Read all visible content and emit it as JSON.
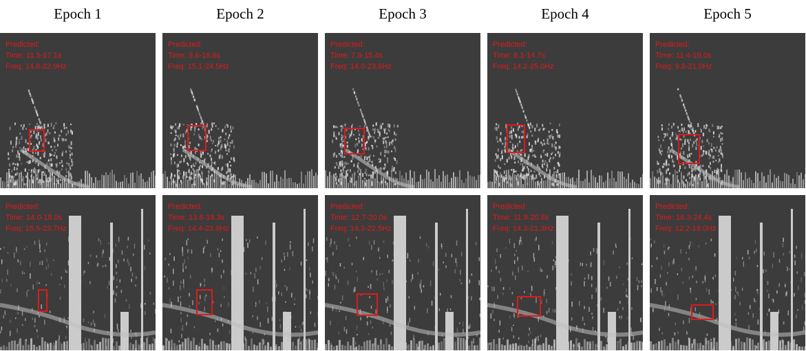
{
  "epochs": [
    {
      "title": "Epoch 1",
      "top": {
        "time": "Time: 11.5-17.1s",
        "freq": "Freq: 14.8-22.9Hz"
      },
      "bottom": {
        "time": "Time: 14.0-18.0s",
        "freq": "Freq: 15.5-23.7Hz"
      }
    },
    {
      "title": "Epoch 2",
      "top": {
        "time": "Time: 9.6-16.8s",
        "freq": "Freq: 15.1-24.5Hz"
      },
      "bottom": {
        "time": "Time: 13.6-19.3s",
        "freq": "Freq: 14.4-23.9Hz"
      }
    },
    {
      "title": "Epoch 3",
      "top": {
        "time": "Time: 7.9-15.4s",
        "freq": "Freq: 14.0-23.6Hz"
      },
      "bottom": {
        "time": "Time: 12.7-20.0s",
        "freq": "Freq: 14.3-22.5Hz"
      }
    },
    {
      "title": "Epoch 4",
      "top": {
        "time": "Time: 8.1-14.7s",
        "freq": "Freq: 14.2-25.0Hz"
      },
      "bottom": {
        "time": "Time: 11.9-20.6s",
        "freq": "Freq: 14.3-21.3Hz"
      }
    },
    {
      "title": "Epoch 5",
      "top": {
        "time": "Time: 11.4-19.0s",
        "freq": "Freq: 9.8-21.0Hz"
      },
      "bottom": {
        "time": "Time: 16.3-24.4s",
        "freq": "Freq: 12.2-18.0Hz"
      }
    }
  ],
  "predicted_label": "Predicted:",
  "colors": {
    "background": "#3c3c3c",
    "box": "#e11a1a",
    "signal": "#d8d8d8"
  }
}
